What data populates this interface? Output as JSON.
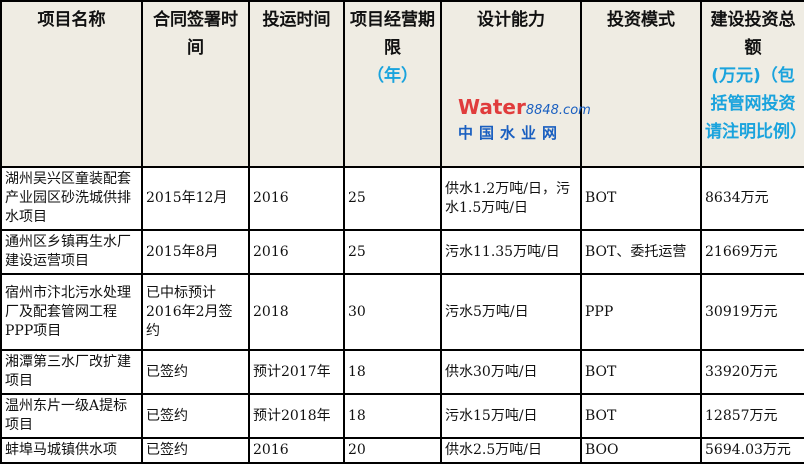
{
  "headers": [
    {
      "label": "项目名称"
    },
    {
      "label": "合同签署时间"
    },
    {
      "label": "投运时间"
    },
    {
      "label": "项目经营期限",
      "note": "（年）"
    },
    {
      "label": "设计能力"
    },
    {
      "label": "投资模式"
    },
    {
      "label": "建设投资总额",
      "note": "(万元)（包括管网投资请注明比例）"
    }
  ],
  "rows": [
    [
      "湖州吴兴区童装配套产业园区砂洗城供排水项目",
      "2015年12月",
      "2016",
      "25",
      "供水1.2万吨/日，污水1.5万吨/日",
      "BOT",
      "8634万元"
    ],
    [
      "通州区乡镇再生水厂建设运营项目",
      "2015年8月",
      "2016",
      "25",
      "污水11.35万吨/日",
      "BOT、委托运营",
      "21669万元"
    ],
    [
      "宿州市汴北污水处理厂及配套管网工程PPP项目",
      "已中标预计2016年2月签约",
      "2018",
      "30",
      "污水5万吨/日",
      "PPP",
      "30919万元"
    ],
    [
      "湘潭第三水厂改扩建项目",
      "已签约",
      "预计2017年",
      "18",
      "供水30万吨/日",
      "BOT",
      "33920万元"
    ],
    [
      "温州东片一级A提标项目",
      "已签约",
      "预计2018年",
      "18",
      "污水15万吨/日",
      "BOT",
      "12857万元"
    ],
    [
      "蚌埠马城镇供水项",
      "已签约",
      "2016",
      "20",
      "供水2.5万吨/日",
      "BOO",
      "5694.03万元"
    ]
  ],
  "watermark": {
    "brand": "Water",
    "domain": "8848.com",
    "cn": "中国水业网"
  }
}
